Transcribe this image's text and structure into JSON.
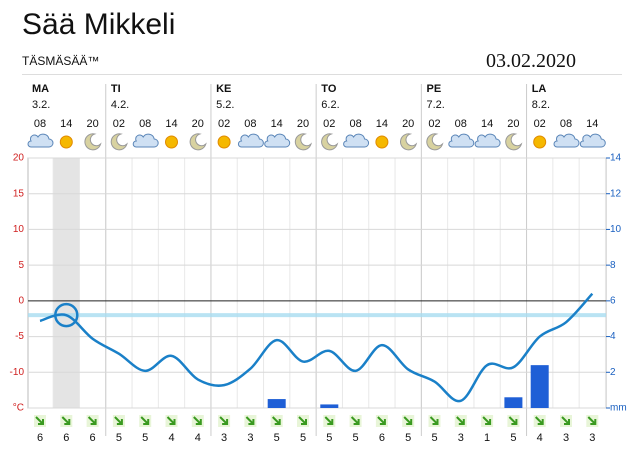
{
  "header": {
    "title": "Sää Mikkeli",
    "brand": "TÄSMÄSÄÄ™",
    "date": "03.02.2020"
  },
  "chart_data": {
    "type": "line",
    "days": [
      {
        "name": "MA",
        "date": "3.2."
      },
      {
        "name": "TI",
        "date": "4.2."
      },
      {
        "name": "KE",
        "date": "5.2."
      },
      {
        "name": "TO",
        "date": "6.2."
      },
      {
        "name": "PE",
        "date": "7.2."
      },
      {
        "name": "LA",
        "date": "8.2."
      }
    ],
    "categories": [
      "08",
      "14",
      "20",
      "02",
      "08",
      "14",
      "20",
      "02",
      "08",
      "14",
      "20",
      "02",
      "08",
      "14",
      "20",
      "02",
      "08",
      "14",
      "20",
      "02",
      "08",
      "14"
    ],
    "series": [
      {
        "color": "#1a80c8",
        "values": [
          -2.8,
          -2,
          -5.3,
          -7.4,
          -9.8,
          -7.7,
          -11,
          -11.8,
          -9.5,
          -5.5,
          -8.5,
          -7,
          -9.8,
          -6.2,
          -9.6,
          -11.3,
          -14,
          -9,
          -9.3,
          -5,
          -3,
          1
        ]
      },
      {
        "type": "bar",
        "axis": "y2",
        "color": "#1f5fd6",
        "values": [
          0,
          0,
          0,
          0,
          0,
          0,
          0,
          0,
          0,
          0.5,
          0,
          0.2,
          0,
          0,
          0,
          0,
          0,
          0,
          0.6,
          2.4,
          0,
          0
        ]
      }
    ],
    "ylim": [
      -15,
      20
    ],
    "yticks": [
      {
        "value": -15,
        "label": "°C"
      },
      -10,
      -5,
      0,
      5,
      10,
      15,
      20
    ],
    "y2lim": [
      0,
      14
    ],
    "y2ticks": [
      {
        "value": 0,
        "label": "mm"
      },
      2,
      4,
      6,
      8,
      10,
      12,
      14
    ],
    "wind_speeds": [
      6,
      6,
      6,
      5,
      5,
      4,
      4,
      3,
      3,
      5,
      5,
      5,
      5,
      6,
      5,
      5,
      3,
      1,
      5,
      4,
      3,
      3
    ],
    "grid": true
  }
}
